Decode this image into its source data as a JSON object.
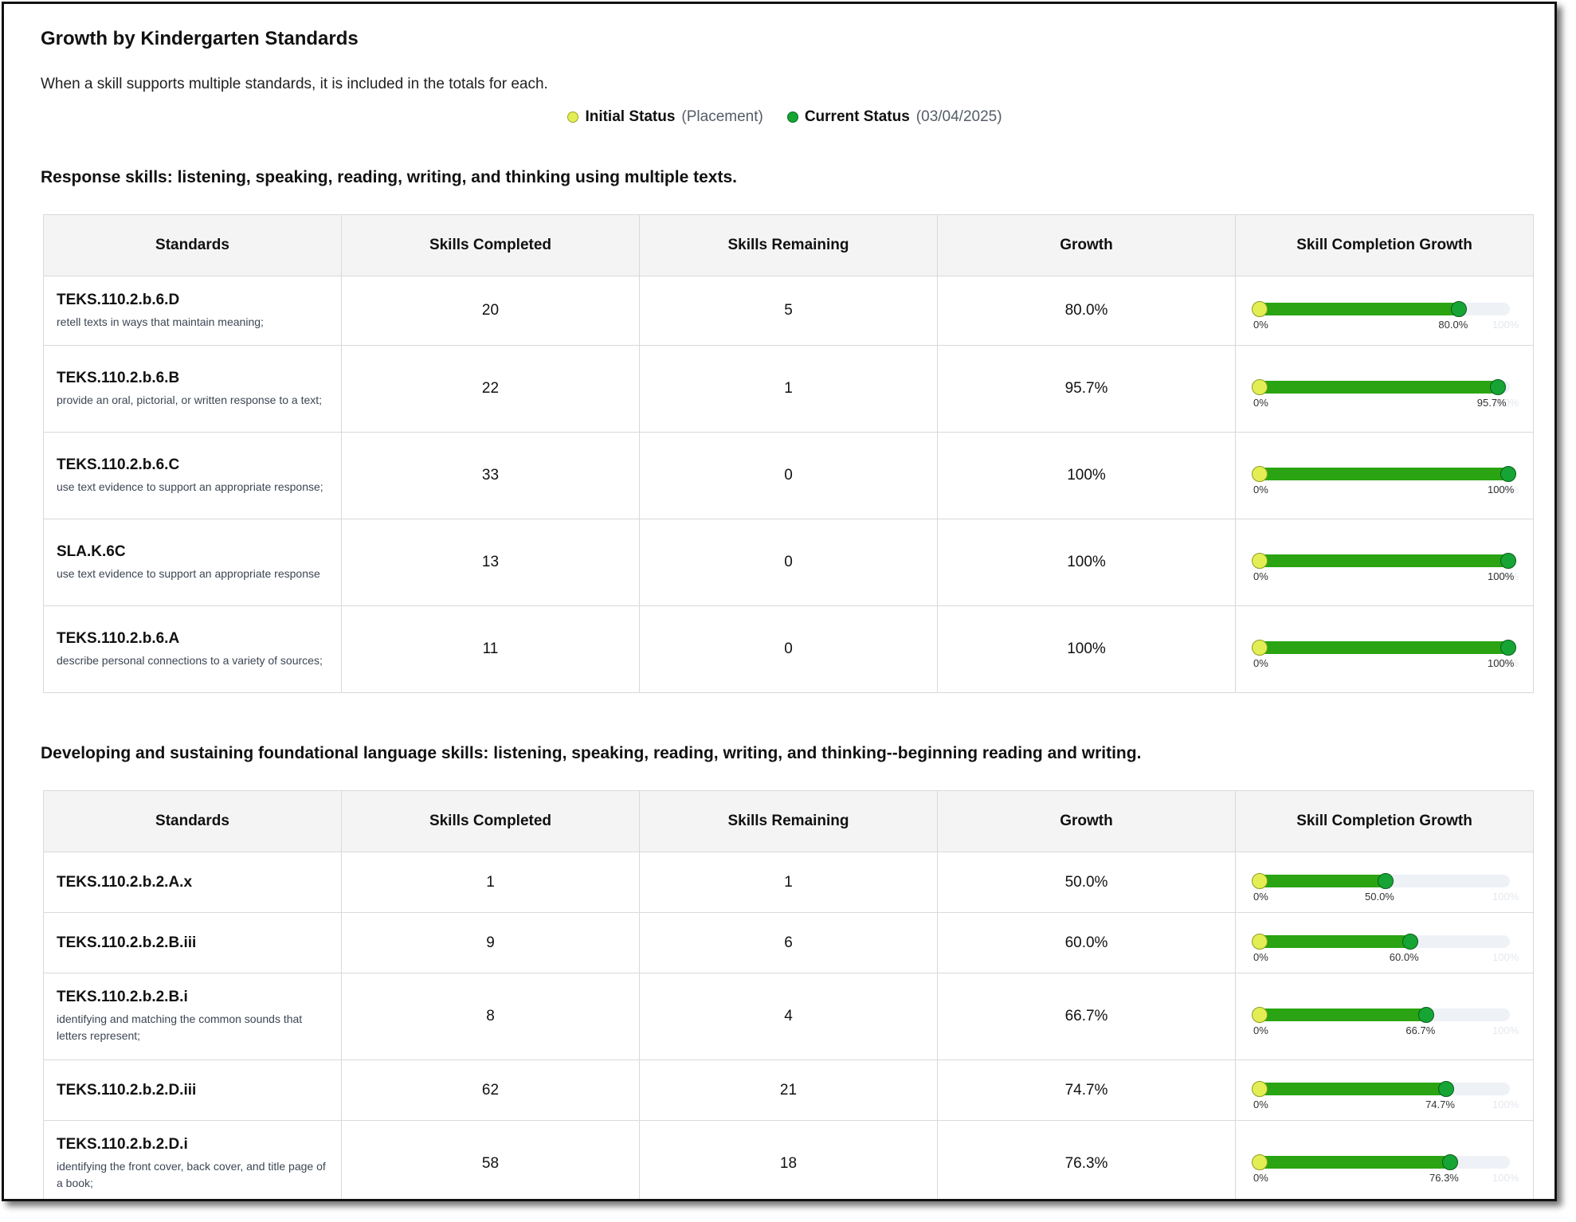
{
  "page": {
    "title": "Growth by Kindergarten Standards",
    "note": "When a skill supports multiple standards, it is included in the totals for each."
  },
  "legend": {
    "initial_label": "Initial Status",
    "initial_sub": "(Placement)",
    "current_label": "Current Status",
    "current_sub": "(03/04/2025)",
    "colors": {
      "initial": "#e2ee54",
      "current": "#16a535",
      "fill": "#2aa412",
      "track": "#eef1f6"
    }
  },
  "columns": [
    "Standards",
    "Skills Completed",
    "Skills Remaining",
    "Growth",
    "Skill Completion Growth"
  ],
  "sections": [
    {
      "title": "Response skills: listening, speaking, reading, writing, and thinking using multiple texts.",
      "rows": [
        {
          "code": "TEKS.110.2.b.6.D",
          "desc": "retell texts in ways that maintain meaning;",
          "completed": "20",
          "remaining": "5",
          "growth": "80.0%",
          "initial": 0,
          "current": 80.0,
          "zero_label": "0%",
          "max_label": "100%"
        },
        {
          "code": "TEKS.110.2.b.6.B",
          "desc": "provide an oral, pictorial, or written response to a text;",
          "completed": "22",
          "remaining": "1",
          "growth": "95.7%",
          "initial": 0,
          "current": 95.7,
          "zero_label": "0%",
          "max_label": "100%"
        },
        {
          "code": "TEKS.110.2.b.6.C",
          "desc": "use text evidence to support an appropriate response;",
          "completed": "33",
          "remaining": "0",
          "growth": "100%",
          "initial": 0,
          "current": 100,
          "zero_label": "0%",
          "max_label": "100%"
        },
        {
          "code": "SLA.K.6C",
          "desc": "use text evidence to support an appropriate response",
          "completed": "13",
          "remaining": "0",
          "growth": "100%",
          "initial": 0,
          "current": 100,
          "zero_label": "0%",
          "max_label": "100%"
        },
        {
          "code": "TEKS.110.2.b.6.A",
          "desc": "describe personal connections to a variety of sources;",
          "completed": "11",
          "remaining": "0",
          "growth": "100%",
          "initial": 0,
          "current": 100,
          "zero_label": "0%",
          "max_label": "100%"
        }
      ]
    },
    {
      "title": "Developing and sustaining foundational language skills: listening, speaking, reading, writing, and thinking--beginning reading and writing.",
      "rows": [
        {
          "code": "TEKS.110.2.b.2.A.x",
          "desc": "",
          "completed": "1",
          "remaining": "1",
          "growth": "50.0%",
          "initial": 0,
          "current": 50.0,
          "zero_label": "0%",
          "max_label": "100%"
        },
        {
          "code": "TEKS.110.2.b.2.B.iii",
          "desc": "",
          "completed": "9",
          "remaining": "6",
          "growth": "60.0%",
          "initial": 0,
          "current": 60.0,
          "zero_label": "0%",
          "max_label": "100%"
        },
        {
          "code": "TEKS.110.2.b.2.B.i",
          "desc": "identifying and matching the common sounds that letters represent;",
          "completed": "8",
          "remaining": "4",
          "growth": "66.7%",
          "initial": 0,
          "current": 66.7,
          "zero_label": "0%",
          "max_label": "100%"
        },
        {
          "code": "TEKS.110.2.b.2.D.iii",
          "desc": "",
          "completed": "62",
          "remaining": "21",
          "growth": "74.7%",
          "initial": 0,
          "current": 74.7,
          "zero_label": "0%",
          "max_label": "100%"
        },
        {
          "code": "TEKS.110.2.b.2.D.i",
          "desc": "identifying the front cover, back cover, and title page of a book;",
          "completed": "58",
          "remaining": "18",
          "growth": "76.3%",
          "initial": 0,
          "current": 76.3,
          "zero_label": "0%",
          "max_label": "100%"
        }
      ]
    }
  ]
}
